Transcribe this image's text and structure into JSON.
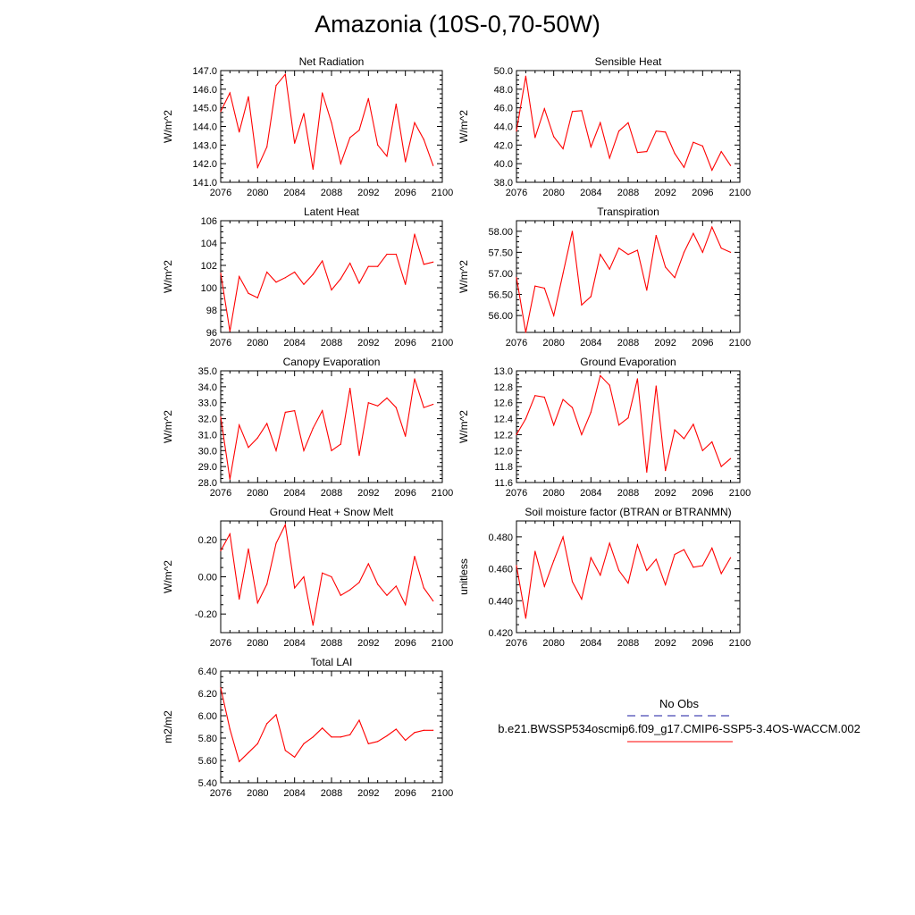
{
  "title": "Amazonia (10S-0,70-50W)",
  "series_color": "#ff0000",
  "legend": {
    "obs_label": "No Obs",
    "obs_color": "#1a1aa0",
    "case_label": "b.e21.BWSSP534oscmip6.f09_g17.CMIP6-SSP5-3.4OS-WACCM.002",
    "case_color": "#ff0000"
  },
  "chart_data": [
    {
      "type": "line",
      "title": "Net Radiation",
      "ylabel": "W/m^2",
      "xlim": [
        2076,
        2100
      ],
      "ylim": [
        141.0,
        147.0
      ],
      "yticks": [
        141.0,
        142.0,
        143.0,
        144.0,
        145.0,
        146.0,
        147.0
      ],
      "ytick_labels": [
        "141.0",
        "142.0",
        "143.0",
        "144.0",
        "145.0",
        "146.0",
        "147.0"
      ],
      "xticks": [
        2076,
        2080,
        2084,
        2088,
        2092,
        2096,
        2100
      ],
      "x": [
        2076,
        2077,
        2078,
        2079,
        2080,
        2081,
        2082,
        2083,
        2084,
        2085,
        2086,
        2087,
        2088,
        2089,
        2090,
        2091,
        2092,
        2093,
        2094,
        2095,
        2096,
        2097,
        2098,
        2099
      ],
      "y": [
        144.8,
        145.8,
        143.7,
        145.6,
        141.8,
        142.9,
        146.2,
        146.8,
        143.1,
        144.7,
        141.7,
        145.8,
        144.2,
        142.0,
        143.4,
        143.8,
        145.5,
        143.0,
        142.4,
        145.2,
        142.1,
        144.2,
        143.3,
        141.9
      ]
    },
    {
      "type": "line",
      "title": "Sensible Heat",
      "ylabel": "W/m^2",
      "xlim": [
        2076,
        2100
      ],
      "ylim": [
        38.0,
        50.0
      ],
      "yticks": [
        38.0,
        40.0,
        42.0,
        44.0,
        46.0,
        48.0,
        50.0
      ],
      "ytick_labels": [
        "38.0",
        "40.0",
        "42.0",
        "44.0",
        "46.0",
        "48.0",
        "50.0"
      ],
      "xticks": [
        2076,
        2080,
        2084,
        2088,
        2092,
        2096,
        2100
      ],
      "x": [
        2076,
        2077,
        2078,
        2079,
        2080,
        2081,
        2082,
        2083,
        2084,
        2085,
        2086,
        2087,
        2088,
        2089,
        2090,
        2091,
        2092,
        2093,
        2094,
        2095,
        2096,
        2097,
        2098,
        2099
      ],
      "y": [
        43.5,
        49.4,
        42.8,
        45.9,
        42.9,
        41.6,
        45.6,
        45.7,
        41.8,
        44.4,
        40.6,
        43.5,
        44.4,
        41.2,
        41.3,
        43.5,
        43.4,
        41.1,
        39.6,
        42.3,
        41.9,
        39.3,
        41.3,
        39.8
      ]
    },
    {
      "type": "line",
      "title": "Latent Heat",
      "ylabel": "W/m^2",
      "xlim": [
        2076,
        2100
      ],
      "ylim": [
        96,
        106
      ],
      "yticks": [
        96,
        98,
        100,
        102,
        104,
        106
      ],
      "ytick_labels": [
        "96",
        "98",
        "100",
        "102",
        "104",
        "106"
      ],
      "xticks": [
        2076,
        2080,
        2084,
        2088,
        2092,
        2096,
        2100
      ],
      "x": [
        2076,
        2077,
        2078,
        2079,
        2080,
        2081,
        2082,
        2083,
        2084,
        2085,
        2086,
        2087,
        2088,
        2089,
        2090,
        2091,
        2092,
        2093,
        2094,
        2095,
        2096,
        2097,
        2098,
        2099
      ],
      "y": [
        101.3,
        96.1,
        101.0,
        99.5,
        99.1,
        101.4,
        100.5,
        100.9,
        101.4,
        100.3,
        101.2,
        102.4,
        99.8,
        100.8,
        102.2,
        100.4,
        101.9,
        101.9,
        103.0,
        103.0,
        100.3,
        104.8,
        102.1,
        102.3
      ]
    },
    {
      "type": "line",
      "title": "Transpiration",
      "ylabel": "W/m^2",
      "xlim": [
        2076,
        2100
      ],
      "ylim": [
        55.6,
        58.25
      ],
      "yticks": [
        56.0,
        56.5,
        57.0,
        57.5,
        58.0
      ],
      "ytick_labels": [
        "56.00",
        "56.50",
        "57.00",
        "57.50",
        "58.00"
      ],
      "xticks": [
        2076,
        2080,
        2084,
        2088,
        2092,
        2096,
        2100
      ],
      "x": [
        2076,
        2077,
        2078,
        2079,
        2080,
        2081,
        2082,
        2083,
        2084,
        2085,
        2086,
        2087,
        2088,
        2089,
        2090,
        2091,
        2092,
        2093,
        2094,
        2095,
        2096,
        2097,
        2098,
        2099
      ],
      "y": [
        56.9,
        55.6,
        56.7,
        56.65,
        56.0,
        57.0,
        58.0,
        56.25,
        56.45,
        57.45,
        57.1,
        57.6,
        57.45,
        57.55,
        56.6,
        57.9,
        57.15,
        56.9,
        57.5,
        57.95,
        57.5,
        58.1,
        57.6,
        57.5
      ]
    },
    {
      "type": "line",
      "title": "Canopy Evaporation",
      "ylabel": "W/m^2",
      "xlim": [
        2076,
        2100
      ],
      "ylim": [
        28.0,
        35.0
      ],
      "yticks": [
        28.0,
        29.0,
        30.0,
        31.0,
        32.0,
        33.0,
        34.0,
        35.0
      ],
      "ytick_labels": [
        "28.0",
        "29.0",
        "30.0",
        "31.0",
        "32.0",
        "33.0",
        "34.0",
        "35.0"
      ],
      "xticks": [
        2076,
        2080,
        2084,
        2088,
        2092,
        2096,
        2100
      ],
      "x": [
        2076,
        2077,
        2078,
        2079,
        2080,
        2081,
        2082,
        2083,
        2084,
        2085,
        2086,
        2087,
        2088,
        2089,
        2090,
        2091,
        2092,
        2093,
        2094,
        2095,
        2096,
        2097,
        2098,
        2099
      ],
      "y": [
        32.1,
        28.2,
        31.6,
        30.2,
        30.8,
        31.7,
        30.0,
        32.4,
        32.5,
        30.0,
        31.4,
        32.5,
        30.0,
        30.4,
        33.9,
        29.7,
        33.0,
        32.8,
        33.3,
        32.7,
        30.9,
        34.5,
        32.7,
        32.9
      ]
    },
    {
      "type": "line",
      "title": "Ground Evaporation",
      "ylabel": "W/m^2",
      "xlim": [
        2076,
        2100
      ],
      "ylim": [
        11.6,
        13.0
      ],
      "yticks": [
        11.6,
        11.8,
        12.0,
        12.2,
        12.4,
        12.6,
        12.8,
        13.0
      ],
      "ytick_labels": [
        "11.6",
        "11.8",
        "12.0",
        "12.2",
        "12.4",
        "12.6",
        "12.8",
        "13.0"
      ],
      "xticks": [
        2076,
        2080,
        2084,
        2088,
        2092,
        2096,
        2100
      ],
      "x": [
        2076,
        2077,
        2078,
        2079,
        2080,
        2081,
        2082,
        2083,
        2084,
        2085,
        2086,
        2087,
        2088,
        2089,
        2090,
        2091,
        2092,
        2093,
        2094,
        2095,
        2096,
        2097,
        2098,
        2099
      ],
      "y": [
        12.2,
        12.4,
        12.69,
        12.67,
        12.32,
        12.64,
        12.54,
        12.2,
        12.48,
        12.94,
        12.82,
        12.32,
        12.41,
        12.9,
        11.73,
        12.81,
        11.75,
        12.26,
        12.15,
        12.33,
        12.0,
        12.11,
        11.8,
        11.9
      ]
    },
    {
      "type": "line",
      "title": "Ground Heat + Snow Melt",
      "ylabel": "W/m^2",
      "xlim": [
        2076,
        2100
      ],
      "ylim": [
        -0.3,
        0.3
      ],
      "yticks": [
        -0.2,
        0.0,
        0.2
      ],
      "ytick_labels": [
        "-0.20",
        "0.00",
        "0.20"
      ],
      "xticks": [
        2076,
        2080,
        2084,
        2088,
        2092,
        2096,
        2100
      ],
      "x": [
        2076,
        2077,
        2078,
        2079,
        2080,
        2081,
        2082,
        2083,
        2084,
        2085,
        2086,
        2087,
        2088,
        2089,
        2090,
        2091,
        2092,
        2093,
        2094,
        2095,
        2096,
        2097,
        2098,
        2099
      ],
      "y": [
        0.14,
        0.23,
        -0.12,
        0.15,
        -0.14,
        -0.04,
        0.18,
        0.28,
        -0.06,
        0.0,
        -0.26,
        0.02,
        0.0,
        -0.1,
        -0.07,
        -0.03,
        0.07,
        -0.04,
        -0.1,
        -0.05,
        -0.15,
        0.11,
        -0.06,
        -0.13
      ]
    },
    {
      "type": "line",
      "title": "Soil moisture factor (BTRAN or BTRANMN)",
      "ylabel": "unitless",
      "xlim": [
        2076,
        2100
      ],
      "ylim": [
        0.42,
        0.49
      ],
      "yticks": [
        0.42,
        0.44,
        0.46,
        0.48
      ],
      "ytick_labels": [
        "0.420",
        "0.440",
        "0.460",
        "0.480"
      ],
      "xticks": [
        2076,
        2080,
        2084,
        2088,
        2092,
        2096,
        2100
      ],
      "x": [
        2076,
        2077,
        2078,
        2079,
        2080,
        2081,
        2082,
        2083,
        2084,
        2085,
        2086,
        2087,
        2088,
        2089,
        2090,
        2091,
        2092,
        2093,
        2094,
        2095,
        2096,
        2097,
        2098,
        2099
      ],
      "y": [
        0.462,
        0.429,
        0.471,
        0.449,
        0.465,
        0.48,
        0.452,
        0.441,
        0.467,
        0.456,
        0.476,
        0.459,
        0.451,
        0.475,
        0.459,
        0.466,
        0.45,
        0.469,
        0.472,
        0.461,
        0.462,
        0.473,
        0.457,
        0.467
      ]
    },
    {
      "type": "line",
      "title": "Total LAI",
      "ylabel": "m2/m2",
      "xlim": [
        2076,
        2100
      ],
      "ylim": [
        5.4,
        6.4
      ],
      "yticks": [
        5.4,
        5.6,
        5.8,
        6.0,
        6.2,
        6.4
      ],
      "ytick_labels": [
        "5.40",
        "5.60",
        "5.80",
        "6.00",
        "6.20",
        "6.40"
      ],
      "xticks": [
        2076,
        2080,
        2084,
        2088,
        2092,
        2096,
        2100
      ],
      "x": [
        2076,
        2077,
        2078,
        2079,
        2080,
        2081,
        2082,
        2083,
        2084,
        2085,
        2086,
        2087,
        2088,
        2089,
        2090,
        2091,
        2092,
        2093,
        2094,
        2095,
        2096,
        2097,
        2098,
        2099
      ],
      "y": [
        6.25,
        5.88,
        5.59,
        5.67,
        5.75,
        5.93,
        6.01,
        5.69,
        5.63,
        5.75,
        5.81,
        5.89,
        5.81,
        5.81,
        5.83,
        5.96,
        5.75,
        5.77,
        5.82,
        5.88,
        5.78,
        5.85,
        5.87,
        5.87
      ]
    }
  ]
}
